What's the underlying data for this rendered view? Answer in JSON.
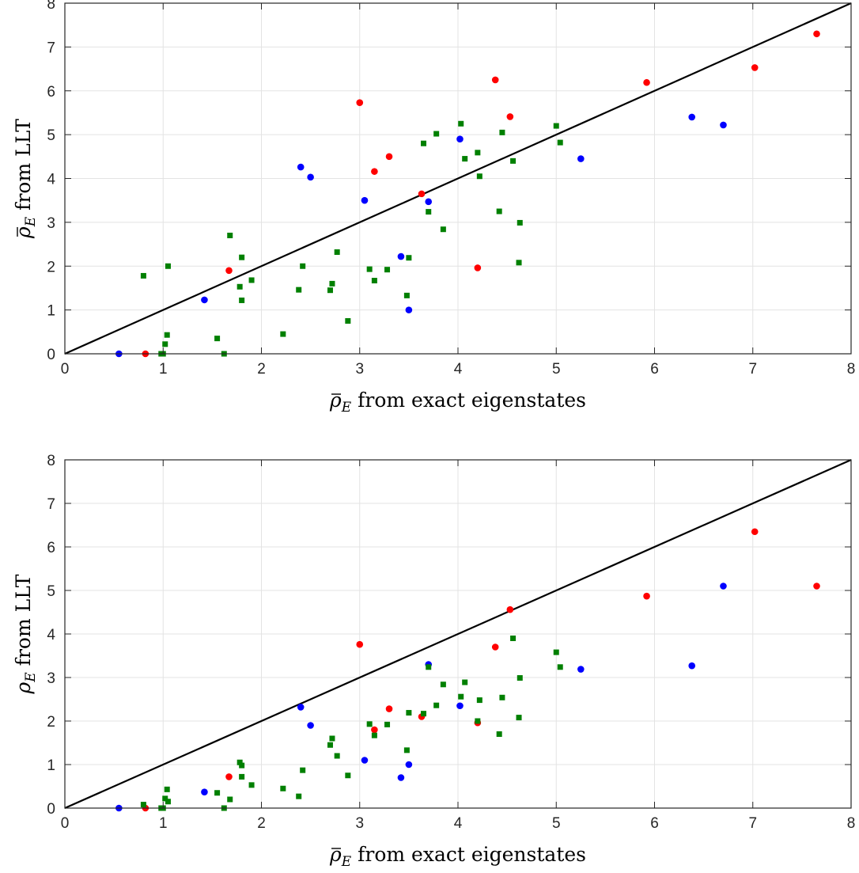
{
  "chart_data": [
    {
      "type": "scatter",
      "xlabel": {
        "sym": "ρ",
        "sub": "E",
        "rest": "from exact eigenstates",
        "bar": true
      },
      "ylabel": {
        "sym": "ρ",
        "sub": "E",
        "rest": "from LLT",
        "bar": true
      },
      "xlim": [
        0,
        8
      ],
      "ylim": [
        0,
        8
      ],
      "x_ticks": [
        "0",
        "1",
        "2",
        "3",
        "4",
        "5",
        "6",
        "7",
        "8"
      ],
      "y_ticks": [
        "0",
        "1",
        "2",
        "3",
        "4",
        "5",
        "6",
        "7",
        "8"
      ],
      "grid": true,
      "reference_line": [
        [
          0,
          0
        ],
        [
          8,
          8
        ]
      ],
      "series": [
        {
          "marker": "circle",
          "color": "#0000ff",
          "points": [
            [
              0.55,
              0.0
            ],
            [
              1.42,
              1.23
            ],
            [
              2.4,
              4.26
            ],
            [
              2.5,
              4.03
            ],
            [
              3.05,
              3.5
            ],
            [
              3.42,
              2.22
            ],
            [
              3.5,
              1.0
            ],
            [
              3.7,
              3.47
            ],
            [
              4.02,
              4.9
            ],
            [
              5.25,
              4.45
            ],
            [
              6.38,
              5.4
            ],
            [
              6.7,
              5.22
            ]
          ]
        },
        {
          "marker": "circle",
          "color": "#ff0000",
          "points": [
            [
              0.82,
              0.0
            ],
            [
              1.67,
              1.9
            ],
            [
              3.0,
              5.73
            ],
            [
              3.15,
              4.16
            ],
            [
              3.3,
              4.5
            ],
            [
              3.63,
              3.65
            ],
            [
              4.2,
              1.96
            ],
            [
              4.38,
              6.25
            ],
            [
              4.53,
              5.41
            ],
            [
              5.92,
              6.19
            ],
            [
              7.02,
              6.53
            ],
            [
              7.65,
              7.3
            ]
          ]
        },
        {
          "marker": "square",
          "color": "#008000",
          "points": [
            [
              0.8,
              1.78
            ],
            [
              0.98,
              0.0
            ],
            [
              1.0,
              0.0
            ],
            [
              1.02,
              0.22
            ],
            [
              1.04,
              0.43
            ],
            [
              1.05,
              2.0
            ],
            [
              1.55,
              0.35
            ],
            [
              1.62,
              0.0
            ],
            [
              1.68,
              2.7
            ],
            [
              1.78,
              1.53
            ],
            [
              1.8,
              1.22
            ],
            [
              1.8,
              2.2
            ],
            [
              1.9,
              1.68
            ],
            [
              2.22,
              0.45
            ],
            [
              2.38,
              1.46
            ],
            [
              2.42,
              2.0
            ],
            [
              2.7,
              1.45
            ],
            [
              2.72,
              1.6
            ],
            [
              2.77,
              2.32
            ],
            [
              2.88,
              0.75
            ],
            [
              3.1,
              1.93
            ],
            [
              3.15,
              1.67
            ],
            [
              3.28,
              1.92
            ],
            [
              3.48,
              1.33
            ],
            [
              3.5,
              2.19
            ],
            [
              3.65,
              4.8
            ],
            [
              3.7,
              3.24
            ],
            [
              3.78,
              5.02
            ],
            [
              3.85,
              2.84
            ],
            [
              4.03,
              5.25
            ],
            [
              4.07,
              4.45
            ],
            [
              4.2,
              4.59
            ],
            [
              4.22,
              4.05
            ],
            [
              4.42,
              3.25
            ],
            [
              4.45,
              5.05
            ],
            [
              4.56,
              4.4
            ],
            [
              4.62,
              2.08
            ],
            [
              4.63,
              2.99
            ],
            [
              5.0,
              5.2
            ],
            [
              5.04,
              4.82
            ]
          ]
        }
      ]
    },
    {
      "type": "scatter",
      "xlabel": {
        "sym": "ρ",
        "sub": "E",
        "rest": "from exact eigenstates",
        "bar": true
      },
      "ylabel": {
        "sym": "ρ",
        "sub": "E",
        "rest": "from LLT",
        "bar": false
      },
      "xlim": [
        0,
        8
      ],
      "ylim": [
        0,
        8
      ],
      "x_ticks": [
        "0",
        "1",
        "2",
        "3",
        "4",
        "5",
        "6",
        "7",
        "8"
      ],
      "y_ticks": [
        "0",
        "1",
        "2",
        "3",
        "4",
        "5",
        "6",
        "7",
        "8"
      ],
      "grid": true,
      "reference_line": [
        [
          0,
          0
        ],
        [
          8,
          8
        ]
      ],
      "series": [
        {
          "marker": "circle",
          "color": "#0000ff",
          "points": [
            [
              0.55,
              0.0
            ],
            [
              1.42,
              0.37
            ],
            [
              2.4,
              2.32
            ],
            [
              2.5,
              1.9
            ],
            [
              3.05,
              1.1
            ],
            [
              3.42,
              0.7
            ],
            [
              3.5,
              1.0
            ],
            [
              3.7,
              3.3
            ],
            [
              4.02,
              2.35
            ],
            [
              5.25,
              3.19
            ],
            [
              6.38,
              3.27
            ],
            [
              6.7,
              5.1
            ]
          ]
        },
        {
          "marker": "circle",
          "color": "#ff0000",
          "points": [
            [
              0.82,
              0.0
            ],
            [
              1.67,
              0.72
            ],
            [
              3.0,
              3.76
            ],
            [
              3.15,
              1.8
            ],
            [
              3.3,
              2.28
            ],
            [
              3.63,
              2.1
            ],
            [
              4.2,
              1.96
            ],
            [
              4.38,
              3.7
            ],
            [
              4.53,
              4.56
            ],
            [
              5.92,
              4.87
            ],
            [
              7.02,
              6.35
            ],
            [
              7.65,
              5.1
            ]
          ]
        },
        {
          "marker": "square",
          "color": "#008000",
          "points": [
            [
              0.8,
              0.08
            ],
            [
              0.98,
              0.0
            ],
            [
              1.0,
              0.0
            ],
            [
              1.02,
              0.22
            ],
            [
              1.04,
              0.43
            ],
            [
              1.05,
              0.15
            ],
            [
              1.55,
              0.35
            ],
            [
              1.62,
              0.0
            ],
            [
              1.68,
              0.2
            ],
            [
              1.78,
              1.05
            ],
            [
              1.8,
              0.98
            ],
            [
              1.8,
              0.72
            ],
            [
              1.9,
              0.53
            ],
            [
              2.22,
              0.45
            ],
            [
              2.38,
              0.27
            ],
            [
              2.42,
              0.87
            ],
            [
              2.7,
              1.45
            ],
            [
              2.72,
              1.6
            ],
            [
              2.77,
              1.2
            ],
            [
              2.88,
              0.75
            ],
            [
              3.1,
              1.93
            ],
            [
              3.15,
              1.67
            ],
            [
              3.28,
              1.92
            ],
            [
              3.48,
              1.33
            ],
            [
              3.5,
              2.19
            ],
            [
              3.65,
              2.17
            ],
            [
              3.7,
              3.24
            ],
            [
              3.78,
              2.36
            ],
            [
              3.85,
              2.84
            ],
            [
              4.03,
              2.56
            ],
            [
              4.07,
              2.89
            ],
            [
              4.2,
              2.0
            ],
            [
              4.22,
              2.48
            ],
            [
              4.42,
              1.7
            ],
            [
              4.45,
              2.54
            ],
            [
              4.56,
              3.9
            ],
            [
              4.62,
              2.08
            ],
            [
              4.63,
              2.99
            ],
            [
              5.0,
              3.58
            ],
            [
              5.04,
              3.24
            ]
          ]
        }
      ]
    }
  ]
}
